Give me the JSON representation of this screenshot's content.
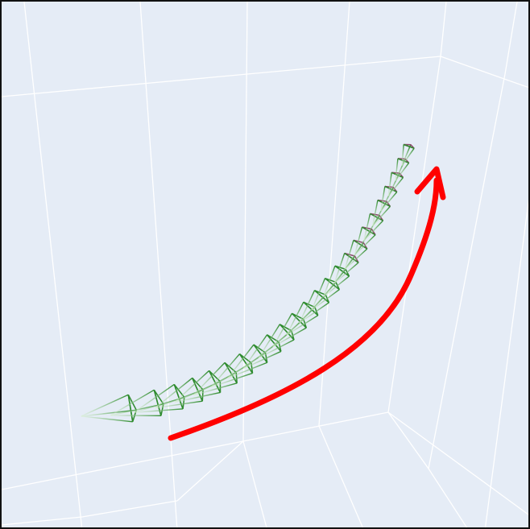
{
  "scene": {
    "background_color": "#e5ecf6",
    "grid_color": "#ffffff",
    "frame_color": "#111111",
    "camera_color": "#2e8b2e",
    "camera_fade_color": "#d8f0d0",
    "camera_far_color": "#8b4a6a",
    "arrow_color": "#ff0000",
    "camera_count": 25,
    "arrow_direction": "up-right"
  }
}
